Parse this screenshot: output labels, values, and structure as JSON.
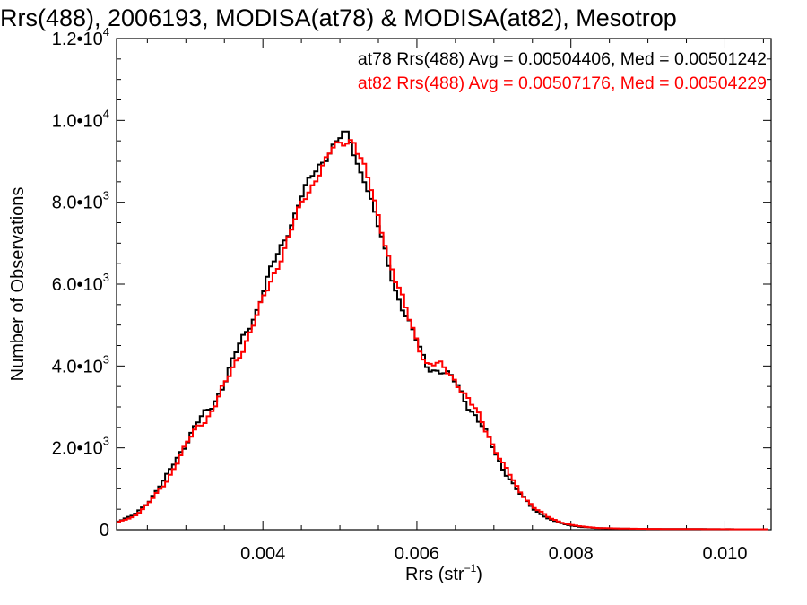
{
  "chart_data": {
    "type": "line",
    "title": "Rrs(488), 2006193, MODISA(at78) & MODISA(at82), Mesotrop",
    "xlabel": "Rrs (str",
    "xlabel_sup": "−1",
    "xlabel_end": ")",
    "ylabel": "Number of Observations",
    "xlim": [
      0.0021,
      0.0106
    ],
    "ylim": [
      0,
      12000
    ],
    "x_ticks": [
      {
        "value": 0.004,
        "label": "0.004"
      },
      {
        "value": 0.006,
        "label": "0.006"
      },
      {
        "value": 0.008,
        "label": "0.008"
      },
      {
        "value": 0.01,
        "label": "0.010"
      }
    ],
    "y_ticks": [
      {
        "value": 0,
        "mant": "0",
        "exp": ""
      },
      {
        "value": 2000,
        "mant": "2.0•10",
        "exp": "3"
      },
      {
        "value": 4000,
        "mant": "4.0•10",
        "exp": "3"
      },
      {
        "value": 6000,
        "mant": "6.0•10",
        "exp": "3"
      },
      {
        "value": 8000,
        "mant": "8.0•10",
        "exp": "3"
      },
      {
        "value": 10000,
        "mant": "1.0•10",
        "exp": "4"
      },
      {
        "value": 12000,
        "mant": "1.2•10",
        "exp": "4"
      }
    ],
    "legend_position": "top-right",
    "annotations": [
      "at78 Rrs(488) Avg = 0.00504406, Med = 0.00501242",
      "at82 Rrs(488) Avg = 0.00507176, Med = 0.00504229"
    ],
    "series": [
      {
        "color": "#000000",
        "x": [
          0.0021,
          0.0023,
          0.0025,
          0.0027,
          0.0029,
          0.0031,
          0.0033,
          0.0035,
          0.0037,
          0.0039,
          0.0041,
          0.0043,
          0.0045,
          0.0047,
          0.0049,
          0.00505,
          0.0051,
          0.0052,
          0.0053,
          0.0055,
          0.0057,
          0.0059,
          0.0061,
          0.0063,
          0.0065,
          0.0067,
          0.0069,
          0.0071,
          0.0073,
          0.0075,
          0.0077,
          0.0079,
          0.0081,
          0.0083,
          0.0086,
          0.009,
          0.0095,
          0.01,
          0.0106
        ],
        "y": [
          200,
          350,
          700,
          1200,
          1900,
          2500,
          3000,
          3700,
          4600,
          5400,
          6400,
          7300,
          8200,
          8900,
          9400,
          9650,
          9550,
          9000,
          8600,
          7200,
          5900,
          4900,
          4050,
          3850,
          3550,
          2900,
          2250,
          1500,
          900,
          500,
          250,
          130,
          70,
          40,
          25,
          18,
          15,
          12,
          10
        ]
      },
      {
        "color": "#ff0000",
        "x": [
          0.0021,
          0.0023,
          0.0025,
          0.0027,
          0.0029,
          0.0031,
          0.0033,
          0.0035,
          0.0037,
          0.0039,
          0.0041,
          0.0043,
          0.0045,
          0.0047,
          0.0049,
          0.0051,
          0.00515,
          0.0052,
          0.0053,
          0.0055,
          0.0057,
          0.0059,
          0.0061,
          0.0063,
          0.0065,
          0.0067,
          0.0069,
          0.0071,
          0.0073,
          0.0075,
          0.0077,
          0.0079,
          0.0081,
          0.0083,
          0.0086,
          0.009,
          0.0095,
          0.01,
          0.0106
        ],
        "y": [
          180,
          320,
          650,
          1100,
          1800,
          2400,
          2900,
          3550,
          4400,
          5200,
          6150,
          7100,
          8000,
          8750,
          9300,
          9550,
          9600,
          9300,
          8800,
          7500,
          6100,
          5000,
          4100,
          3950,
          3650,
          3000,
          2350,
          1600,
          950,
          550,
          280,
          150,
          80,
          45,
          28,
          20,
          16,
          12,
          10
        ]
      }
    ]
  }
}
